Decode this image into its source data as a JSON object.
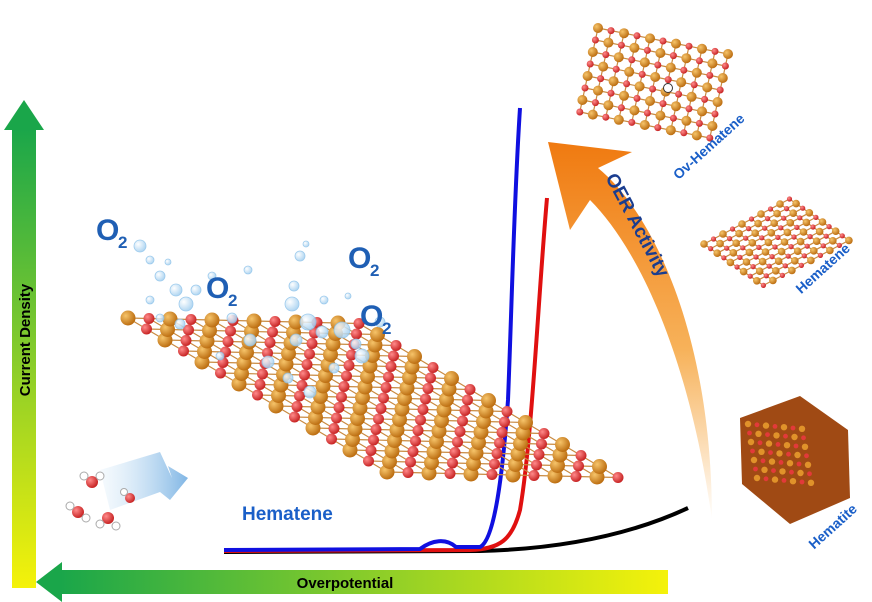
{
  "axes": {
    "y_label": "Current Density",
    "x_label": "Overpotential"
  },
  "o2_labels": [
    {
      "text": "O",
      "sub": "2"
    },
    {
      "text": "O",
      "sub": "2"
    },
    {
      "text": "O",
      "sub": "2"
    },
    {
      "text": "O",
      "sub": "2"
    }
  ],
  "substrate_label": "Hematene",
  "trend_label": "OER Activity",
  "materials": [
    {
      "name": "Ov-Hematene",
      "curve_color": "#1010e0"
    },
    {
      "name": "Hematene",
      "curve_color": "#e01010"
    },
    {
      "name": "Hematite",
      "curve_color": "#000000"
    }
  ],
  "colors": {
    "fe_atom": "#d98a1c",
    "o_atom": "#e23a3a",
    "bubble": "#bfe0f5",
    "axis_gradient_start": "#1aa64a",
    "axis_gradient_end": "#f5f20a",
    "oer_arrow_start": "#f07a10",
    "oer_arrow_end": "#ffffff"
  }
}
